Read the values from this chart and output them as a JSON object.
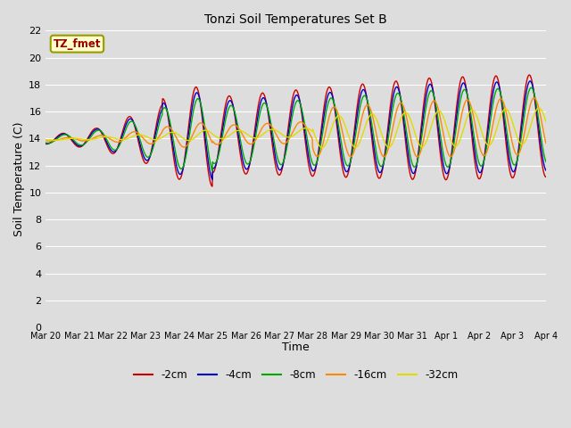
{
  "title": "Tonzi Soil Temperatures Set B",
  "xlabel": "Time",
  "ylabel": "Soil Temperature (C)",
  "annotation_text": "TZ_fmet",
  "annotation_color": "#990000",
  "annotation_bg": "#ffffcc",
  "annotation_border": "#999900",
  "ylim": [
    0,
    22
  ],
  "yticks": [
    0,
    2,
    4,
    6,
    8,
    10,
    12,
    14,
    16,
    18,
    20,
    22
  ],
  "bg_color": "#dddddd",
  "plot_bg": "#dddddd",
  "series_colors": [
    "#cc0000",
    "#0000cc",
    "#00aa00",
    "#ff8800",
    "#dddd00"
  ],
  "series_labels": [
    "-2cm",
    "-4cm",
    "-8cm",
    "-16cm",
    "-32cm"
  ],
  "num_points": 1500,
  "x_start": 0,
  "x_end": 15,
  "x_tick_labels": [
    "Mar 20",
    "Mar 21",
    "Mar 22",
    "Mar 23",
    "Mar 24",
    "Mar 25",
    "Mar 26",
    "Mar 27",
    "Mar 28",
    "Mar 29",
    "Mar 30",
    "Mar 31",
    "Apr 1",
    "Apr 2",
    "Apr 3",
    "Apr 4"
  ],
  "x_tick_positions": [
    0,
    1,
    2,
    3,
    4,
    5,
    6,
    7,
    8,
    9,
    10,
    11,
    12,
    13,
    14,
    15
  ],
  "linewidth": 1.0
}
